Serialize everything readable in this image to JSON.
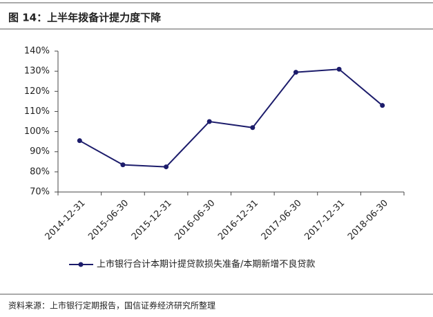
{
  "title": "图 14：上半年拨备计提力度下降",
  "source": "资料来源：上市银行定期报告，国信证券经济研究所整理",
  "chart_data": {
    "type": "line",
    "categories": [
      "2014-12-31",
      "2015-06-30",
      "2015-12-31",
      "2016-06-30",
      "2016-12-31",
      "2017-06-30",
      "2017-12-31",
      "2018-06-30"
    ],
    "series": [
      {
        "name": "上市银行合计本期计提贷款损失准备/本期新增不良贷款",
        "color": "#1c1c6b",
        "values": [
          95.5,
          83.5,
          82.5,
          105,
          102,
          129.5,
          131,
          113
        ]
      }
    ],
    "ylim": [
      70,
      140
    ],
    "yticks": [
      {
        "value": 70,
        "label": "70%"
      },
      {
        "value": 80,
        "label": "80%"
      },
      {
        "value": 90,
        "label": "90%"
      },
      {
        "value": 100,
        "label": "100%"
      },
      {
        "value": 110,
        "label": "110%"
      },
      {
        "value": 120,
        "label": "120%"
      },
      {
        "value": 130,
        "label": "130%"
      },
      {
        "value": 140,
        "label": "140%"
      }
    ],
    "legend": "bottom"
  }
}
